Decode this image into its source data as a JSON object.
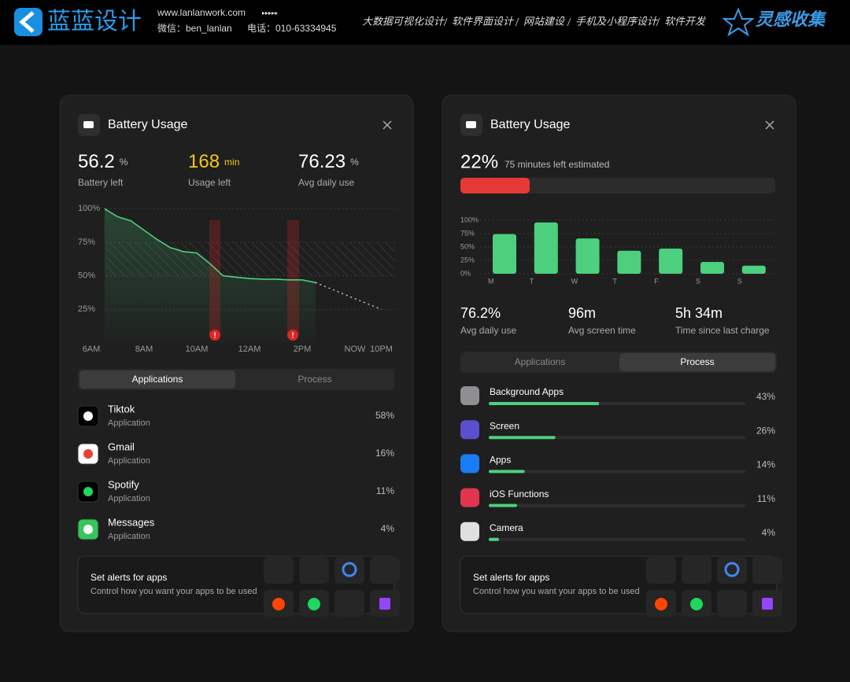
{
  "header": {
    "brand": "蓝蓝设计",
    "url": "www.lanlanwork.com",
    "arrows": "▸▸▸▸▸",
    "wechat": "微信：ben_lanlan",
    "phone": "电话：010-63334945",
    "services": [
      "大数据可视化设计",
      "软件界面设计",
      "网站建设",
      "手机及小程序设计",
      "软件开发"
    ],
    "tag": "灵感收集"
  },
  "left_panel": {
    "title": "Battery Usage",
    "stats": [
      {
        "value": "56.2",
        "unit": "%",
        "label": "Battery left"
      },
      {
        "value": "168",
        "unit": "min",
        "label": "Usage left"
      },
      {
        "value": "76.23",
        "unit": "%",
        "label": "Avg daily use"
      }
    ],
    "chart": {
      "type": "line",
      "categories": [
        "6AM",
        null,
        null,
        null,
        "8AM",
        null,
        null,
        null,
        "10AM",
        null,
        null,
        null,
        "12AM",
        null,
        null,
        null,
        "2PM",
        null,
        null,
        null,
        "NOW",
        null,
        "10PM"
      ],
      "values": [
        null,
        100,
        94,
        91,
        84,
        77,
        71,
        68,
        67,
        59,
        50,
        49,
        48,
        47.5,
        47.5,
        47,
        47,
        45,
        null,
        null,
        null,
        null,
        null
      ],
      "projection": [
        null,
        null,
        null,
        null,
        null,
        null,
        null,
        null,
        null,
        null,
        null,
        null,
        null,
        null,
        null,
        null,
        null,
        45,
        41,
        37,
        33,
        29,
        25
      ],
      "color": "#4cd07d",
      "ylim": [
        0,
        100
      ],
      "yticks": [
        {
          "value": 100,
          "label": "100%"
        },
        {
          "value": 75,
          "label": "75%"
        },
        {
          "value": 50,
          "label": "50%"
        },
        {
          "value": 25,
          "label": "25%"
        }
      ],
      "alerts": [
        "!",
        "!"
      ]
    },
    "tabs": [
      "Applications",
      "Process"
    ],
    "apps": [
      {
        "name": "Tiktok",
        "kind": "Application",
        "value": 58,
        "value_label": "58%"
      },
      {
        "name": "Gmail",
        "kind": "Application",
        "value": 16,
        "value_label": "16%"
      },
      {
        "name": "Spotify",
        "kind": "Application",
        "value": 11,
        "value_label": "11%"
      },
      {
        "name": "Messages",
        "kind": "Application",
        "value": 4,
        "value_label": "4%"
      }
    ],
    "alert_card": {
      "title": "Set alerts for apps",
      "subtitle": "Control how you want your apps to be used"
    }
  },
  "right_panel": {
    "title": "Battery Usage",
    "battery": {
      "value": 22,
      "label": "22%"
    },
    "estimate": "75 minutes left estimated",
    "chart": {
      "type": "bar",
      "categories": [
        "M",
        "T",
        "W",
        "T",
        "F",
        "S",
        "S"
      ],
      "values": [
        74,
        96,
        66,
        43,
        47,
        22,
        15
      ],
      "color": "#4cd07d",
      "ylim": [
        0,
        100
      ],
      "yticks": [
        {
          "value": 100,
          "label": "100%"
        },
        {
          "value": 75,
          "label": "75%"
        },
        {
          "value": 50,
          "label": "50%"
        },
        {
          "value": 25,
          "label": "25%"
        },
        {
          "value": 0,
          "label": "0%"
        }
      ]
    },
    "stats": [
      {
        "value": "76.2%",
        "label": "Avg daily use"
      },
      {
        "value": "96m",
        "label": "Avg screen time"
      },
      {
        "value": "5h 34m",
        "label": "Time since last charge"
      }
    ],
    "tabs": [
      "Applications",
      "Process"
    ],
    "processes": [
      {
        "name": "Background Apps",
        "value": 43,
        "value_label": "43%"
      },
      {
        "name": "Screen",
        "value": 26,
        "value_label": "26%"
      },
      {
        "name": "Apps",
        "value": 14,
        "value_label": "14%"
      },
      {
        "name": "iOS Functions",
        "value": 11,
        "value_label": "11%"
      },
      {
        "name": "Camera",
        "value": 4,
        "value_label": "4%"
      }
    ],
    "alert_card": {
      "title": "Set alerts for apps",
      "subtitle": "Control how you want your apps to be used"
    }
  }
}
